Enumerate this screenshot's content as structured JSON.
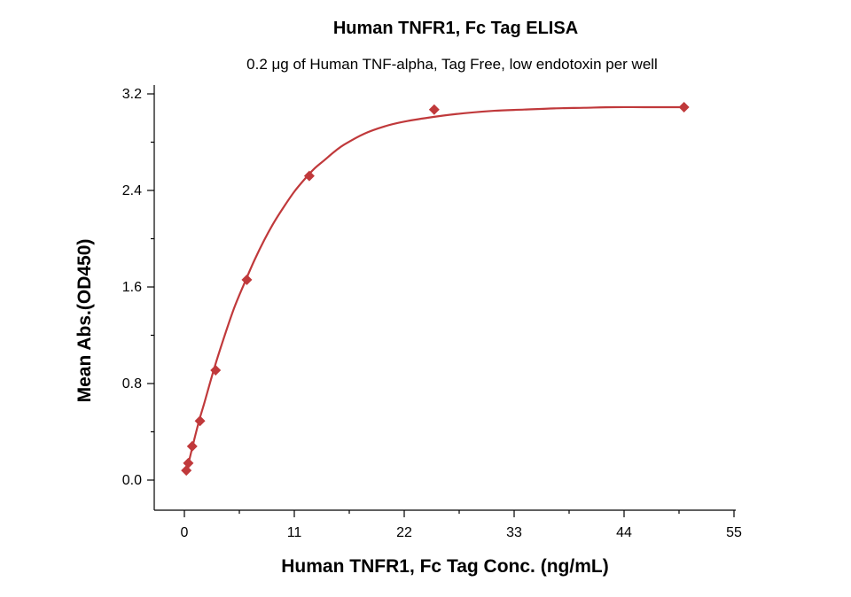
{
  "chart_data": {
    "type": "scatter",
    "title": "Human TNFR1, Fc Tag ELISA",
    "subtitle": "0.2 μg of Human TNF-alpha, Tag Free, low endotoxin per well",
    "xlabel": "Human TNFR1, Fc Tag Conc. (ng/mL)",
    "ylabel": "Mean Abs.(OD450)",
    "xlim": [
      -3,
      55
    ],
    "ylim": [
      -0.25,
      3.2
    ],
    "xticks": [
      0,
      11,
      22,
      33,
      44,
      55
    ],
    "xtick_labels": [
      "0",
      "11",
      "22",
      "33",
      "44",
      "55"
    ],
    "yticks": [
      0.0,
      0.8,
      1.6,
      2.4,
      3.2
    ],
    "ytick_labels": [
      "0.0",
      "0.8",
      "1.6",
      "2.4",
      "3.2"
    ],
    "series": [
      {
        "color": "#c0393b",
        "marker": "diamond",
        "x": [
          0.195,
          0.39,
          0.78,
          1.56,
          3.125,
          6.25,
          12.5,
          25,
          50
        ],
        "y": [
          0.08,
          0.14,
          0.28,
          0.49,
          0.91,
          1.66,
          2.52,
          3.07,
          3.09
        ]
      }
    ],
    "fit_curve": {
      "color": "#c0393b",
      "x": [
        0.195,
        0.5,
        1,
        1.5,
        2,
        3,
        4,
        5,
        6,
        7,
        8,
        9,
        10,
        11,
        12,
        13,
        14,
        15,
        16,
        18,
        20,
        22,
        25,
        28,
        31,
        34,
        37,
        40,
        43,
        46,
        50
      ],
      "y": [
        0.07,
        0.17,
        0.34,
        0.5,
        0.64,
        0.93,
        1.19,
        1.43,
        1.63,
        1.82,
        1.99,
        2.14,
        2.27,
        2.39,
        2.49,
        2.58,
        2.65,
        2.72,
        2.78,
        2.87,
        2.93,
        2.97,
        3.01,
        3.04,
        3.06,
        3.07,
        3.08,
        3.085,
        3.09,
        3.09,
        3.09
      ]
    }
  }
}
